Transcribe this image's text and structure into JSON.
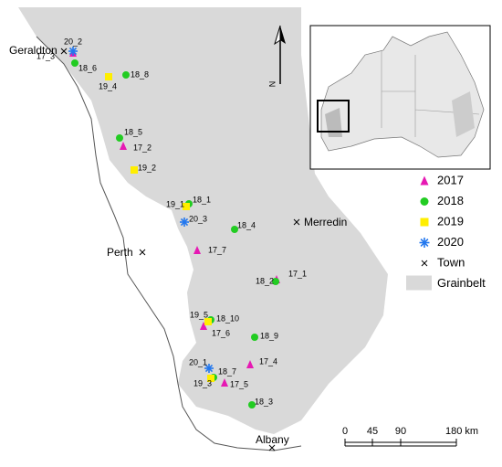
{
  "legend": [
    {
      "label": "2017",
      "sites": [
        "17_3",
        "17_2",
        "17_7",
        "17_1",
        "17_6",
        "17_4",
        "17_5"
      ]
    },
    {
      "label": "2018",
      "sites": [
        "18_6",
        "18_8",
        "18_5",
        "18_1",
        "18_4",
        "18_2",
        "18_10",
        "18_9",
        "18_7",
        "18_3"
      ]
    },
    {
      "label": "2019",
      "sites": [
        "19_4",
        "19_2",
        "19_1",
        "19_5",
        "19_3"
      ]
    },
    {
      "label": "2020",
      "sites": [
        "20_2",
        "20_3",
        "20_1"
      ]
    },
    {
      "label": "Town"
    },
    {
      "label": "Grainbelt"
    }
  ],
  "towns": [
    "Geraldton",
    "Merredin",
    "Perth",
    "Albany"
  ],
  "north_label": "N",
  "scale_bar": [
    "0",
    "45",
    "90",
    "180 km"
  ]
}
